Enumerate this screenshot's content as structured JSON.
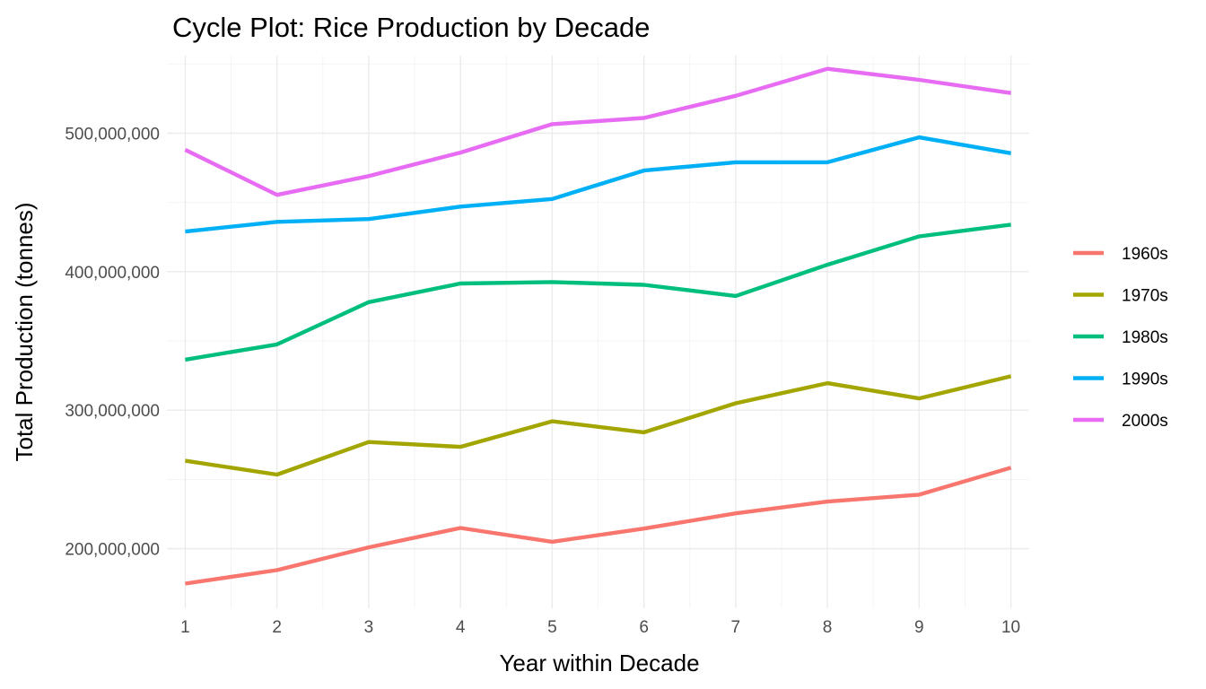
{
  "chart_data": {
    "type": "line",
    "title": "Cycle Plot: Rice Production by Decade",
    "xlabel": "Year within Decade",
    "ylabel": "Total Production (tonnes)",
    "x": [
      1,
      2,
      3,
      4,
      5,
      6,
      7,
      8,
      9,
      10
    ],
    "x_tick_labels": [
      "1",
      "2",
      "3",
      "4",
      "5",
      "6",
      "7",
      "8",
      "9",
      "10"
    ],
    "xlim": [
      0.8,
      10.2
    ],
    "ylim": [
      157000000,
      556000000
    ],
    "y_ticks": [
      200000000,
      300000000,
      400000000,
      500000000
    ],
    "y_tick_labels": [
      "200,000,000",
      "300,000,000",
      "400,000,000",
      "500,000,000"
    ],
    "grid": true,
    "legend_position": "right",
    "series": [
      {
        "name": "1960s",
        "color": "#F8766D",
        "values": [
          174800000,
          184500000,
          201000000,
          215000000,
          205000000,
          214500000,
          225500000,
          234000000,
          239000000,
          258500000
        ]
      },
      {
        "name": "1970s",
        "color": "#A3A500",
        "values": [
          263500000,
          253500000,
          277000000,
          273500000,
          292000000,
          284000000,
          305000000,
          319500000,
          308500000,
          324500000
        ]
      },
      {
        "name": "1980s",
        "color": "#00BF7D",
        "values": [
          336500000,
          347500000,
          378000000,
          391500000,
          392500000,
          390500000,
          382500000,
          405000000,
          425500000,
          434000000
        ]
      },
      {
        "name": "1990s",
        "color": "#00B0F6",
        "values": [
          429000000,
          436000000,
          438000000,
          447000000,
          452500000,
          473000000,
          479000000,
          479000000,
          497000000,
          485500000
        ]
      },
      {
        "name": "2000s",
        "color": "#E76BF3",
        "values": [
          488000000,
          455500000,
          469000000,
          486000000,
          506500000,
          511000000,
          527000000,
          546500000,
          538500000,
          529000000
        ]
      }
    ]
  }
}
